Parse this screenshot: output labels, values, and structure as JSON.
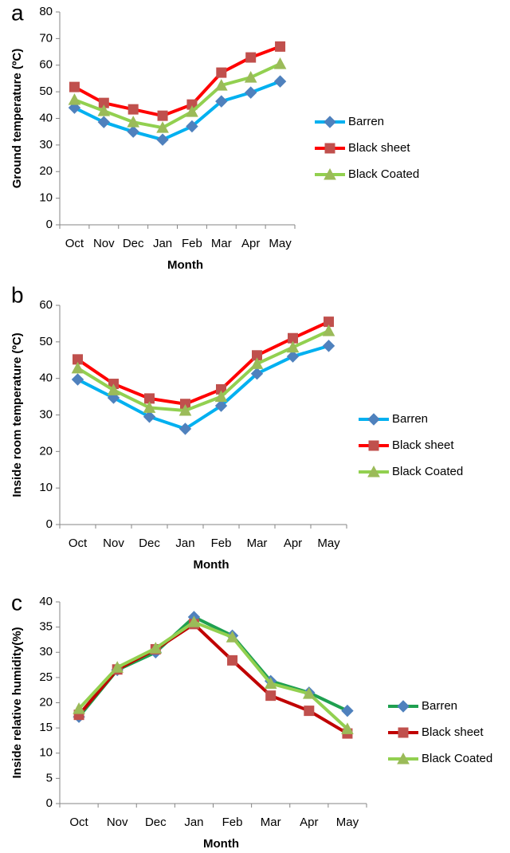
{
  "chart_data": [
    {
      "type": "line",
      "label": "a",
      "x_label": "Month",
      "y_label": "Ground temperature (ºC)",
      "categories": [
        "Oct",
        "Nov",
        "Dec",
        "Jan",
        "Feb",
        "Mar",
        "Apr",
        "May"
      ],
      "ylim": [
        0,
        80
      ],
      "yticks": [
        0,
        10,
        20,
        30,
        40,
        50,
        60,
        70,
        80
      ],
      "series": [
        {
          "name": "Barren",
          "color": "#00b0f0",
          "marker": "diamond",
          "marker_color": "#4f81bd",
          "values": [
            44,
            38.6,
            35,
            32,
            37,
            46.4,
            49.7,
            53.9
          ]
        },
        {
          "name": "Black sheet",
          "color": "#ff0000",
          "marker": "square",
          "marker_color": "#c0504d",
          "values": [
            51.8,
            45.8,
            43.4,
            41,
            45.2,
            57.2,
            62.9,
            67
          ]
        },
        {
          "name": "Black Coated",
          "color": "#92d050",
          "marker": "triangle",
          "marker_color": "#9bbb59",
          "values": [
            47,
            42.8,
            38.6,
            36.5,
            42.5,
            52.4,
            55.4,
            60.5
          ]
        }
      ]
    },
    {
      "type": "line",
      "label": "b",
      "x_label": "Month",
      "y_label": "Inside room temperature (ºC)",
      "categories": [
        "Oct",
        "Nov",
        "Dec",
        "Jan",
        "Feb",
        "Mar",
        "Apr",
        "May"
      ],
      "ylim": [
        0,
        60
      ],
      "yticks": [
        0,
        10,
        20,
        30,
        40,
        50,
        60
      ],
      "series": [
        {
          "name": "Barren",
          "color": "#00b0f0",
          "marker": "diamond",
          "marker_color": "#4f81bd",
          "values": [
            39.7,
            34.7,
            29.5,
            26.2,
            32.5,
            41.3,
            46,
            48.9
          ]
        },
        {
          "name": "Black sheet",
          "color": "#ff0000",
          "marker": "square",
          "marker_color": "#c0504d",
          "values": [
            45.2,
            38.5,
            34.5,
            33,
            37,
            46.3,
            51,
            55.5
          ]
        },
        {
          "name": "Black Coated",
          "color": "#92d050",
          "marker": "triangle",
          "marker_color": "#9bbb59",
          "values": [
            42.8,
            36.8,
            32,
            31.2,
            35,
            44,
            48.5,
            53
          ]
        }
      ]
    },
    {
      "type": "line",
      "label": "c",
      "x_label": "Month",
      "y_label": "Inside relative humidity(%)",
      "categories": [
        "Oct",
        "Nov",
        "Dec",
        "Jan",
        "Feb",
        "Mar",
        "Apr",
        "May"
      ],
      "ylim": [
        0,
        40
      ],
      "yticks": [
        0,
        5,
        10,
        15,
        20,
        25,
        30,
        35,
        40
      ],
      "series": [
        {
          "name": "Barren",
          "color": "#1fa050",
          "marker": "diamond",
          "marker_color": "#4f81bd",
          "values": [
            17.2,
            26.5,
            30,
            37,
            33.3,
            24.3,
            22,
            18.4
          ]
        },
        {
          "name": "Black sheet",
          "color": "#c00000",
          "marker": "square",
          "marker_color": "#c0504d",
          "values": [
            17.6,
            26.6,
            30.6,
            35.6,
            28.4,
            21.4,
            18.4,
            13.9
          ]
        },
        {
          "name": "Black Coated",
          "color": "#92d050",
          "marker": "triangle",
          "marker_color": "#9bbb59",
          "values": [
            18.8,
            27,
            30.8,
            36,
            33,
            23.8,
            21.8,
            14.8
          ]
        }
      ]
    }
  ]
}
